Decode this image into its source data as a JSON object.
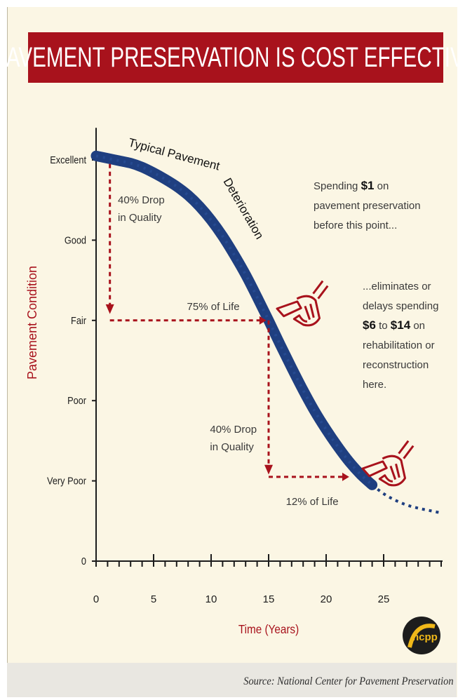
{
  "title": "PAVEMENT PRESERVATION IS COST EFFECTIVE",
  "source": "Source: National Center for Pavement Preservation",
  "logo_text": "ncpp",
  "colors": {
    "banner": "#a8121c",
    "curve": "#1f3f80",
    "accent_red": "#a8121c",
    "background": "#fbf6e4"
  },
  "chart_data": {
    "type": "line",
    "xlabel": "Time (Years)",
    "ylabel": "Pavement Condition",
    "xlim": [
      0,
      30
    ],
    "x_ticks": [
      "0",
      "5",
      "10",
      "15",
      "20",
      "25"
    ],
    "y_categories": [
      "0",
      "Very Poor",
      "Good",
      "Excellent",
      "Fair",
      "Poor"
    ],
    "y_levels": {
      "0": 0,
      "Very Poor": 1,
      "Poor": 2,
      "Fair": 3,
      "Good": 4,
      "Excellent": 5
    },
    "series": [
      {
        "name": "Typical Pavement Deterioration",
        "x": [
          0,
          1,
          2,
          3,
          4,
          5,
          6,
          7,
          8,
          9,
          10,
          11,
          12,
          13,
          14,
          15,
          16,
          17,
          18,
          19,
          20,
          21,
          22,
          23,
          24,
          25,
          26,
          27,
          28,
          29,
          30
        ],
        "y": [
          5.05,
          5.02,
          4.99,
          4.96,
          4.91,
          4.84,
          4.76,
          4.67,
          4.56,
          4.42,
          4.25,
          4.05,
          3.82,
          3.57,
          3.29,
          3.0,
          2.7,
          2.41,
          2.13,
          1.87,
          1.64,
          1.43,
          1.24,
          1.08,
          0.95,
          0.84,
          0.76,
          0.7,
          0.66,
          0.63,
          0.6
        ]
      }
    ],
    "annotations": {
      "drop1": "40% Drop\nin Quality",
      "life1": "75% of Life",
      "drop2": "40% Drop\nin Quality",
      "life2": "12% of Life",
      "spend1": "Spending $1 on\npavement preservation\nbefore this point...",
      "spend2": "...eliminates or\ndelays spending\n$6 to $14 on\nrehabilitation or\nreconstruction\nhere."
    },
    "grid": false
  }
}
